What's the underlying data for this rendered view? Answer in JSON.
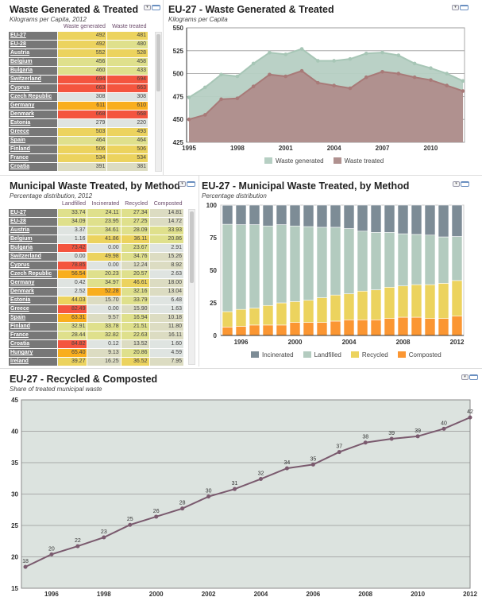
{
  "palette": {
    "Y": "#ecd35e",
    "G": "#dfe08c",
    "L": "#dfe4e1",
    "R": "#f4553f",
    "O": "#f9ae1e",
    "B": "#dcdcc2"
  },
  "panel1": {
    "title": "Waste Generated & Treated",
    "subtitle": "Kilograms per Capita, 2012",
    "columns": [
      "Waste generated",
      "Waste treated"
    ],
    "rows": [
      {
        "name": "EU-27",
        "values": [
          "492",
          "481"
        ],
        "colors": [
          "Y",
          "Y"
        ]
      },
      {
        "name": "EU-28",
        "values": [
          "492",
          "480"
        ],
        "colors": [
          "Y",
          "G"
        ]
      },
      {
        "name": "Austria",
        "values": [
          "552",
          "528"
        ],
        "colors": [
          "Y",
          "Y"
        ]
      },
      {
        "name": "Belgium",
        "values": [
          "456",
          "458"
        ],
        "colors": [
          "G",
          "G"
        ]
      },
      {
        "name": "Bulgaria",
        "values": [
          "460",
          "433"
        ],
        "colors": [
          "G",
          "G"
        ]
      },
      {
        "name": "Switzerland",
        "values": [
          "694",
          "694"
        ],
        "colors": [
          "R",
          "R"
        ]
      },
      {
        "name": "Cyprus",
        "values": [
          "663",
          "663"
        ],
        "colors": [
          "R",
          "R"
        ]
      },
      {
        "name": "Czech Republic",
        "values": [
          "308",
          "308"
        ],
        "colors": [
          "L",
          "L"
        ]
      },
      {
        "name": "Germany",
        "values": [
          "611",
          "610"
        ],
        "colors": [
          "O",
          "O"
        ]
      },
      {
        "name": "Denmark",
        "values": [
          "668",
          "668"
        ],
        "colors": [
          "R",
          "R"
        ]
      },
      {
        "name": "Estonia",
        "values": [
          "279",
          "220"
        ],
        "colors": [
          "L",
          "L"
        ]
      },
      {
        "name": "Greece",
        "values": [
          "503",
          "493"
        ],
        "colors": [
          "Y",
          "Y"
        ]
      },
      {
        "name": "Spain",
        "values": [
          "464",
          "464"
        ],
        "colors": [
          "G",
          "G"
        ]
      },
      {
        "name": "Finland",
        "values": [
          "506",
          "506"
        ],
        "colors": [
          "Y",
          "Y"
        ]
      },
      {
        "name": "France",
        "values": [
          "534",
          "534"
        ],
        "colors": [
          "Y",
          "Y"
        ]
      },
      {
        "name": "Croatia",
        "values": [
          "391",
          "381"
        ],
        "colors": [
          "B",
          "B"
        ]
      }
    ]
  },
  "panel3": {
    "title": "Municipal Waste Treated, by Method",
    "subtitle": "Percentage distribution, 2012",
    "columns": [
      "Landfilled",
      "Incinerated",
      "Recycled",
      "Composted"
    ],
    "rows": [
      {
        "name": "EU-27",
        "values": [
          "33.74",
          "24.11",
          "27.34",
          "14.81"
        ],
        "colors": [
          "G",
          "G",
          "G",
          "B"
        ]
      },
      {
        "name": "EU-28",
        "values": [
          "34.09",
          "23.95",
          "27.25",
          "14.72"
        ],
        "colors": [
          "G",
          "G",
          "G",
          "B"
        ]
      },
      {
        "name": "Austria",
        "values": [
          "3.37",
          "34.61",
          "28.09",
          "33.93"
        ],
        "colors": [
          "L",
          "G",
          "G",
          "G"
        ]
      },
      {
        "name": "Belgium",
        "values": [
          "1.16",
          "41.86",
          "36.11",
          "20.86"
        ],
        "colors": [
          "L",
          "Y",
          "Y",
          "G"
        ]
      },
      {
        "name": "Bulgaria",
        "values": [
          "73.42",
          "0.00",
          "23.67",
          "2.91"
        ],
        "colors": [
          "R",
          "L",
          "G",
          "L"
        ]
      },
      {
        "name": "Switzerland",
        "values": [
          "0.00",
          "49.98",
          "34.76",
          "15.26"
        ],
        "colors": [
          "L",
          "Y",
          "G",
          "B"
        ]
      },
      {
        "name": "Cyprus",
        "values": [
          "78.85",
          "0.00",
          "12.24",
          "8.92"
        ],
        "colors": [
          "R",
          "L",
          "B",
          "B"
        ]
      },
      {
        "name": "Czech Republic",
        "values": [
          "56.54",
          "20.23",
          "20.57",
          "2.63"
        ],
        "colors": [
          "O",
          "G",
          "G",
          "L"
        ]
      },
      {
        "name": "Germany",
        "values": [
          "0.42",
          "34.97",
          "46.61",
          "18.00"
        ],
        "colors": [
          "L",
          "G",
          "Y",
          "B"
        ]
      },
      {
        "name": "Denmark",
        "values": [
          "2.52",
          "52.28",
          "32.16",
          "13.04"
        ],
        "colors": [
          "L",
          "O",
          "G",
          "B"
        ]
      },
      {
        "name": "Estonia",
        "values": [
          "44.03",
          "15.70",
          "33.79",
          "6.48"
        ],
        "colors": [
          "Y",
          "B",
          "G",
          "L"
        ]
      },
      {
        "name": "Greece",
        "values": [
          "82.49",
          "0.00",
          "15.90",
          "1.63"
        ],
        "colors": [
          "R",
          "L",
          "B",
          "L"
        ]
      },
      {
        "name": "Spain",
        "values": [
          "63.31",
          "9.57",
          "16.94",
          "10.18"
        ],
        "colors": [
          "O",
          "B",
          "G",
          "B"
        ]
      },
      {
        "name": "Finland",
        "values": [
          "32.91",
          "33.78",
          "21.51",
          "11.80"
        ],
        "colors": [
          "G",
          "G",
          "G",
          "B"
        ]
      },
      {
        "name": "France",
        "values": [
          "28.44",
          "32.82",
          "22.63",
          "16.11"
        ],
        "colors": [
          "G",
          "G",
          "G",
          "B"
        ]
      },
      {
        "name": "Croatia",
        "values": [
          "84.82",
          "0.12",
          "13.52",
          "1.60"
        ],
        "colors": [
          "R",
          "L",
          "B",
          "L"
        ]
      },
      {
        "name": "Hungary",
        "values": [
          "65.40",
          "9.13",
          "20.86",
          "4.59"
        ],
        "colors": [
          "O",
          "B",
          "G",
          "L"
        ]
      },
      {
        "name": "Ireland",
        "values": [
          "39.27",
          "16.25",
          "36.52",
          "7.95"
        ],
        "colors": [
          "Y",
          "B",
          "Y",
          "B"
        ]
      }
    ]
  },
  "chart_data": [
    {
      "type": "area",
      "title": "EU-27 - Waste Generated & Treated",
      "subtitle": "Kilograms per Capita",
      "x": [
        1995,
        1996,
        1997,
        1998,
        1999,
        2000,
        2001,
        2002,
        2003,
        2004,
        2005,
        2006,
        2007,
        2008,
        2009,
        2010,
        2011,
        2012
      ],
      "xticks": [
        "1995",
        "1998",
        "2001",
        "2004",
        "2007",
        "2010"
      ],
      "ylim": [
        425,
        550
      ],
      "yticks": [
        "425",
        "450",
        "475",
        "500",
        "525",
        "550"
      ],
      "grid": true,
      "legend": "bottom",
      "series": [
        {
          "name": "Waste generated",
          "color": "#b6cfc3",
          "line": "#a7c6b6",
          "values": [
            474,
            485,
            499,
            497,
            511,
            523,
            521,
            527,
            514,
            514,
            516,
            522,
            523,
            520,
            511,
            506,
            500,
            492
          ]
        },
        {
          "name": "Waste treated",
          "color": "#b0918f",
          "line": "#a87a78",
          "values": [
            450,
            455,
            472,
            473,
            486,
            499,
            497,
            503,
            490,
            487,
            484,
            496,
            502,
            500,
            496,
            493,
            487,
            481
          ]
        }
      ]
    },
    {
      "type": "bar",
      "stacked": true,
      "title": "EU-27 - Municipal Waste Treated, by Method",
      "subtitle": "Percentage distribution",
      "x": [
        1995,
        1996,
        1997,
        1998,
        1999,
        2000,
        2001,
        2002,
        2003,
        2004,
        2005,
        2006,
        2007,
        2008,
        2009,
        2010,
        2011,
        2012
      ],
      "xticks": [
        "1996",
        "2000",
        "2004",
        "2008",
        "2012"
      ],
      "ylim": [
        0,
        100
      ],
      "yticks": [
        "0",
        "25",
        "50",
        "75",
        "100"
      ],
      "legend": "bottom",
      "series": [
        {
          "name": "Composted",
          "color": "#fb9632",
          "values": [
            6.5,
            7,
            8,
            8,
            8,
            10,
            10,
            10,
            11,
            12,
            12,
            12,
            13,
            14,
            14,
            13,
            13,
            14.81
          ]
        },
        {
          "name": "Recycled",
          "color": "#ecd35e",
          "values": [
            11.8,
            13,
            13,
            15,
            17,
            16,
            17,
            19,
            20,
            20,
            22,
            23,
            24,
            24,
            25,
            26,
            27,
            27.34
          ]
        },
        {
          "name": "Landfilled",
          "color": "#b3cbbf",
          "values": [
            67,
            65,
            64,
            61,
            60,
            58,
            56.5,
            54,
            52,
            50,
            46,
            44,
            42,
            40,
            38.5,
            38,
            35.6,
            33.74
          ]
        },
        {
          "name": "Incinerated",
          "color": "#7d8c96",
          "values": [
            14.6,
            15,
            15,
            16,
            15,
            16,
            16.5,
            17,
            17,
            18,
            20,
            21,
            21,
            22,
            22.5,
            23,
            24.4,
            24.11
          ]
        }
      ],
      "legend_order": [
        "Incinerated",
        "Landfilled",
        "Recycled",
        "Composted"
      ]
    },
    {
      "type": "line",
      "title": "EU-27 - Recycled & Composted",
      "subtitle": "Share of treated municipal waste",
      "x": [
        1995,
        1996,
        1997,
        1998,
        1999,
        2000,
        2001,
        2002,
        2003,
        2004,
        2005,
        2006,
        2007,
        2008,
        2009,
        2010,
        2011,
        2012
      ],
      "xticks": [
        "1996",
        "1998",
        "2000",
        "2002",
        "2004",
        "2006",
        "2008",
        "2010",
        "2012"
      ],
      "ylim": [
        15,
        45
      ],
      "yticks": [
        "15",
        "20",
        "25",
        "30",
        "35",
        "40",
        "45"
      ],
      "grid": true,
      "color": "#7a5a6e",
      "values": [
        18.4,
        20.4,
        21.7,
        23.1,
        25.1,
        26.4,
        27.7,
        29.6,
        30.8,
        32.4,
        34.1,
        34.7,
        36.7,
        38.2,
        38.8,
        39.2,
        40.4,
        42.2
      ],
      "labels": [
        "18",
        "20",
        "22",
        "23",
        "25",
        "26",
        "28",
        "30",
        "31",
        "32",
        "34",
        "35",
        "37",
        "38",
        "39",
        "39",
        "40",
        "42"
      ]
    }
  ]
}
